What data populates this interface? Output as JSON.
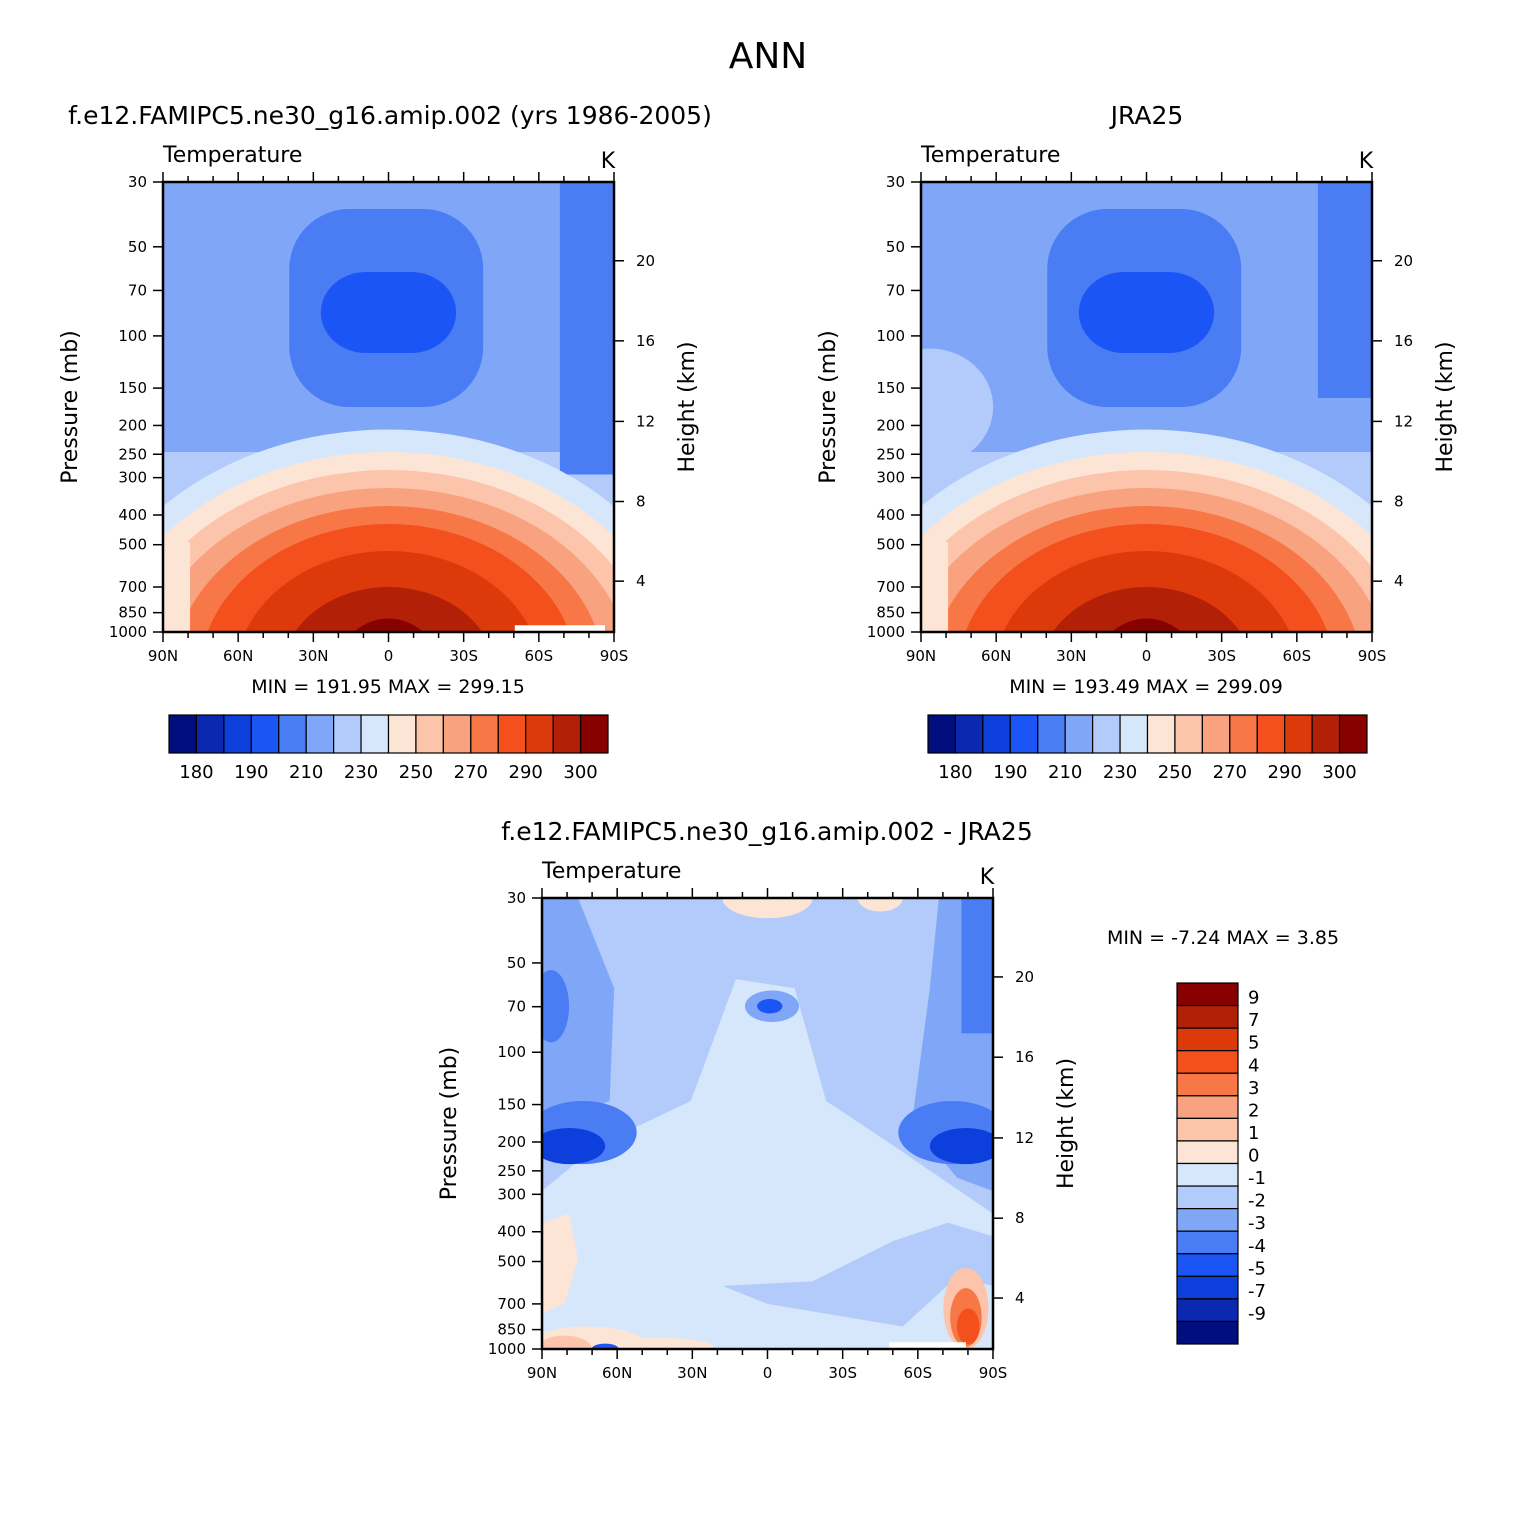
{
  "figure_title": "ANN",
  "chart_data": [
    {
      "type": "contour",
      "title": "f.e12.FAMIPC5.ne30_g16.amip.002 (yrs 1986-2005)",
      "variable": "Temperature",
      "units": "K",
      "xlabel": "",
      "ylabel": "Pressure (mb)",
      "y2label": "Height (km)",
      "x_ticks": [
        "90N",
        "60N",
        "30N",
        "0",
        "30S",
        "60S",
        "90S"
      ],
      "y_ticks": [
        "30",
        "50",
        "70",
        "100",
        "150",
        "200",
        "250",
        "300",
        "400",
        "500",
        "700",
        "850",
        "1000"
      ],
      "y2_ticks": [
        "20",
        "16",
        "12",
        "8",
        "4"
      ],
      "min_label": "MIN =  191.95",
      "max_label": "MAX =  299.15",
      "min": 191.95,
      "max": 299.15,
      "colorbar_labels": [
        "180",
        "190",
        "210",
        "230",
        "250",
        "270",
        "290",
        "300"
      ]
    },
    {
      "type": "contour",
      "title": "JRA25",
      "variable": "Temperature",
      "units": "K",
      "xlabel": "",
      "ylabel": "Pressure (mb)",
      "y2label": "Height (km)",
      "x_ticks": [
        "90N",
        "60N",
        "30N",
        "0",
        "30S",
        "60S",
        "90S"
      ],
      "y_ticks": [
        "30",
        "50",
        "70",
        "100",
        "150",
        "200",
        "250",
        "300",
        "400",
        "500",
        "700",
        "850",
        "1000"
      ],
      "y2_ticks": [
        "20",
        "16",
        "12",
        "8",
        "4"
      ],
      "min_label": "MIN =  193.49",
      "max_label": "MAX =  299.09",
      "min": 193.49,
      "max": 299.09,
      "colorbar_labels": [
        "180",
        "190",
        "210",
        "230",
        "250",
        "270",
        "290",
        "300"
      ]
    },
    {
      "type": "contour",
      "title": "f.e12.FAMIPC5.ne30_g16.amip.002 - JRA25",
      "variable": "Temperature",
      "units": "K",
      "xlabel": "",
      "ylabel": "Pressure (mb)",
      "y2label": "Height (km)",
      "x_ticks": [
        "90N",
        "60N",
        "30N",
        "0",
        "30S",
        "60S",
        "90S"
      ],
      "y_ticks": [
        "30",
        "50",
        "70",
        "100",
        "150",
        "200",
        "250",
        "300",
        "400",
        "500",
        "700",
        "850",
        "1000"
      ],
      "y2_ticks": [
        "20",
        "16",
        "12",
        "8",
        "4"
      ],
      "min_label": "MIN =   -7.24",
      "max_label": "MAX =    3.85",
      "min": -7.24,
      "max": 3.85,
      "colorbar_labels": [
        "9",
        "7",
        "5",
        "4",
        "3",
        "2",
        "1",
        "0",
        "-1",
        "-2",
        "-3",
        "-4",
        "-5",
        "-7",
        "-9"
      ]
    }
  ],
  "colors": {
    "abs_scale": [
      "#000e7e",
      "#0a28b0",
      "#0d3fdc",
      "#1c55f5",
      "#4a7cf4",
      "#7fa6f7",
      "#b3cbfa",
      "#d6e7fb",
      "#fde5d6",
      "#fcc5ab",
      "#f9a27f",
      "#f77746",
      "#f4501e",
      "#dd3a0c",
      "#b22007",
      "#870100"
    ],
    "diff_scale": [
      "#870100",
      "#b22007",
      "#dd3a0c",
      "#f4501e",
      "#f77746",
      "#f9a27f",
      "#fcc5ab",
      "#fde5d6",
      "#d6e7fb",
      "#b3cbfa",
      "#7fa6f7",
      "#4a7cf4",
      "#1c55f5",
      "#0d3fdc",
      "#0a28b0",
      "#000e7e"
    ]
  }
}
